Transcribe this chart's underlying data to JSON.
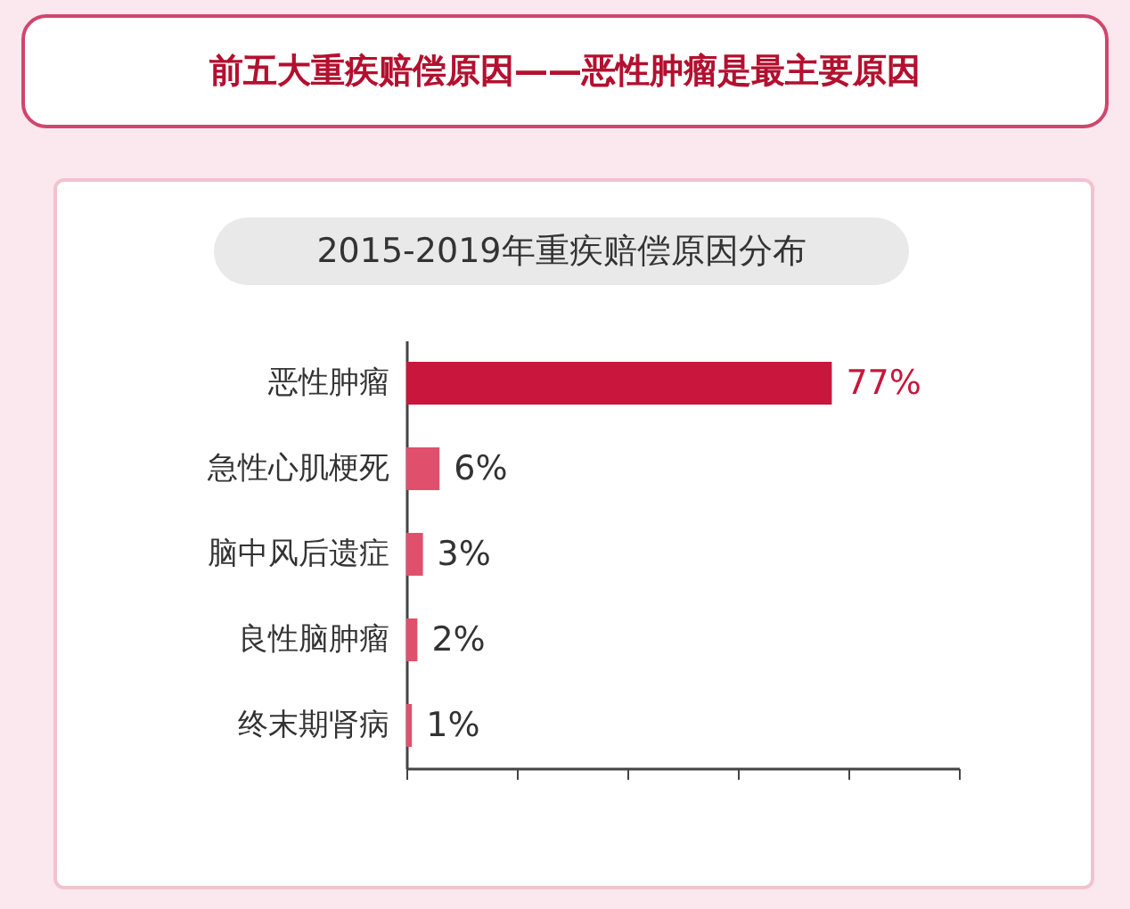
{
  "chart_data": {
    "type": "bar",
    "orientation": "horizontal",
    "title": "前五大重疾赔偿原因——恶性肿瘤是最主要原因",
    "subtitle": "2015-2019年重疾赔偿原因分布",
    "categories": [
      "恶性肿瘤",
      "急性心肌梗死",
      "脑中风后遗症",
      "良性脑肿瘤",
      "终末期肾病"
    ],
    "values": [
      77,
      6,
      3,
      2,
      1
    ],
    "colors": [
      "#c8163c",
      "#e0506c",
      "#e0506c",
      "#e0506c",
      "#e0506c"
    ],
    "value_labels": [
      "77%",
      "6%",
      "3%",
      "2%",
      "1%"
    ],
    "xlim": [
      0,
      100
    ],
    "xticks": [
      {
        "value": 0,
        "label": null
      },
      {
        "value": 20,
        "label": null
      },
      {
        "value": 40,
        "label": null
      },
      {
        "value": 60,
        "label": null
      },
      {
        "value": 80,
        "label": null
      },
      {
        "value": 100,
        "label": null
      }
    ],
    "grid": false,
    "legend": false
  }
}
